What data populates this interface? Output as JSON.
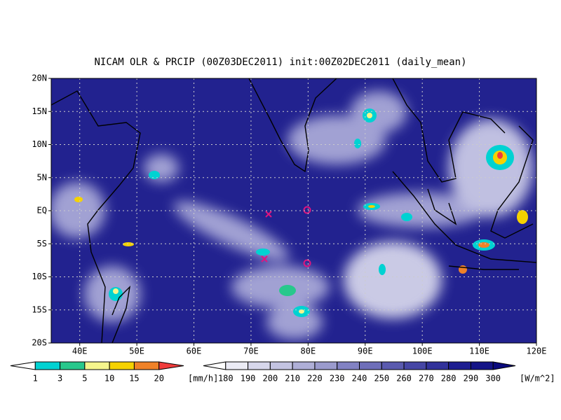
{
  "title": "NICAM OLR & PRCIP (00Z03DEC2011) init:00Z02DEC2011 (daily_mean)",
  "lat_labels": [
    "20N",
    "15N",
    "10N",
    "5N",
    "EQ",
    "5S",
    "10S",
    "15S",
    "20S"
  ],
  "lon_labels": [
    "40E",
    "50E",
    "60E",
    "70E",
    "80E",
    "90E",
    "100E",
    "110E",
    "120E"
  ],
  "precip_colorbar": {
    "labels": [
      "1",
      "3",
      "5",
      "10",
      "15",
      "20"
    ],
    "unit": "[mm/h]",
    "colors": [
      "#ffffff",
      "#00d2d2",
      "#28c88c",
      "#f5f58c",
      "#f5d200",
      "#f08228",
      "#f03c3c"
    ]
  },
  "olr_colorbar": {
    "labels": [
      "180",
      "190",
      "200",
      "210",
      "220",
      "230",
      "240",
      "250",
      "260",
      "270",
      "280",
      "290",
      "300"
    ],
    "unit": "[W/m^2]",
    "colors": [
      "#ffffff",
      "#ebebf5",
      "#d7d7eb",
      "#c3c3e1",
      "#afafd7",
      "#9b9bcd",
      "#8282c3",
      "#6e6eb9",
      "#5a5aaf",
      "#4646a5",
      "#32329b",
      "#1e1e91",
      "#141487",
      "#0a0a7d"
    ]
  }
}
